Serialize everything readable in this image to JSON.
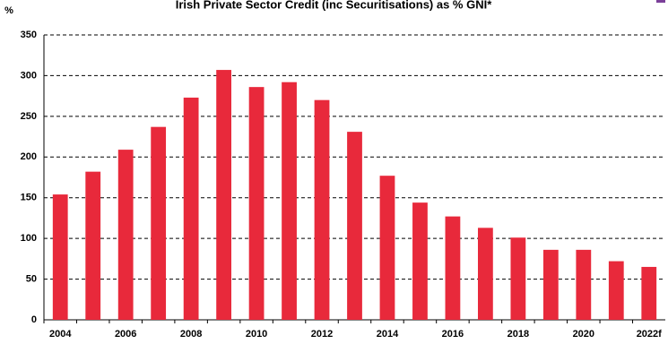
{
  "chart_data": {
    "type": "bar",
    "title": "Irish Private Sector Credit (inc Securitisations) as % GNI*",
    "y_label": "%",
    "categories": [
      "2004",
      null,
      "2006",
      null,
      "2008",
      null,
      "2010",
      null,
      "2012",
      null,
      "2014",
      null,
      "2016",
      null,
      "2018",
      null,
      "2020",
      null,
      "2022f"
    ],
    "values": [
      154,
      182,
      209,
      237,
      273,
      307,
      286,
      292,
      270,
      231,
      177,
      144,
      127,
      113,
      101,
      86,
      86,
      72,
      65
    ],
    "color": "#e8293b",
    "ylim": [
      0,
      350
    ],
    "yticks": [
      0,
      50,
      100,
      150,
      200,
      250,
      300,
      350
    ],
    "grid": true
  }
}
